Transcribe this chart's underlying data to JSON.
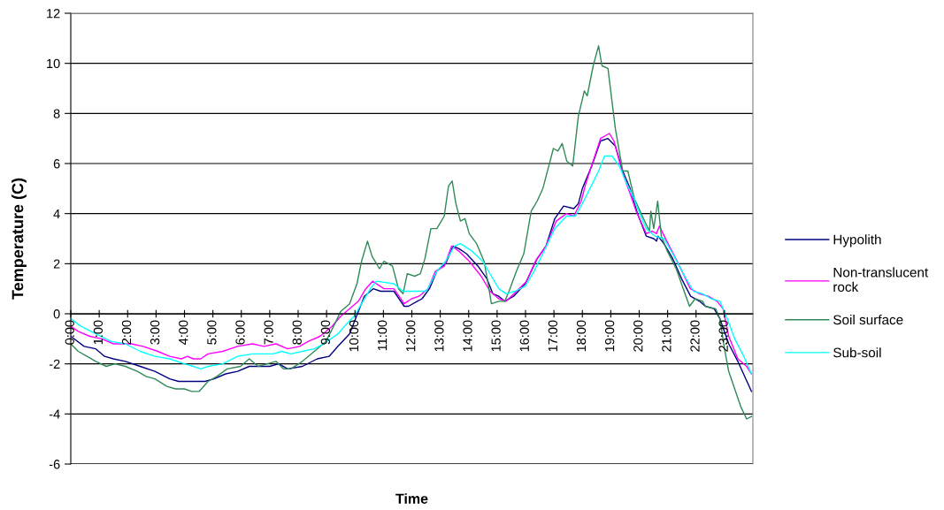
{
  "chart_data": {
    "type": "line",
    "xlabel": "Time",
    "ylabel": "Temperature (C)",
    "series": [
      {
        "name": "Hypolith",
        "color": "#000080",
        "x": [
          0,
          0.47,
          0.88,
          1.19,
          1.5,
          1.92,
          2.44,
          2.96,
          3.48,
          3.79,
          4.2,
          4.72,
          5.04,
          5.45,
          5.87,
          6.28,
          7.0,
          7.32,
          7.63,
          8.15,
          8.67,
          9.09,
          9.4,
          9.81,
          10.12,
          10.33,
          10.64,
          10.9,
          11.37,
          11.73,
          11.88,
          12.19,
          12.36,
          12.62,
          12.88,
          13.19,
          13.45,
          13.66,
          13.92,
          14.33,
          14.64,
          14.85,
          15.06,
          15.27,
          15.58,
          15.99,
          16.41,
          16.72,
          17.03,
          17.34,
          17.7,
          17.86,
          18.0,
          18.33,
          18.64,
          18.9,
          19.16,
          19.42,
          19.68,
          19.94,
          20.25,
          20.51,
          20.61,
          20.66,
          20.87,
          21.18,
          21.49,
          21.81,
          22.12,
          22.33,
          22.64,
          22.84,
          23.15,
          23.47,
          23.95
        ],
        "values": [
          -0.9,
          -1.3,
          -1.4,
          -1.7,
          -1.8,
          -1.9,
          -2.1,
          -2.3,
          -2.6,
          -2.7,
          -2.7,
          -2.7,
          -2.6,
          -2.4,
          -2.3,
          -2.1,
          -2.1,
          -2.0,
          -2.2,
          -2.1,
          -1.8,
          -1.7,
          -1.3,
          -0.8,
          0.1,
          0.7,
          1.0,
          0.9,
          0.9,
          0.3,
          0.3,
          0.5,
          0.6,
          1.0,
          1.7,
          2.0,
          2.7,
          2.6,
          2.4,
          1.9,
          1.4,
          0.8,
          0.7,
          0.5,
          0.7,
          1.2,
          2.2,
          2.7,
          3.8,
          4.3,
          4.2,
          4.4,
          5.0,
          5.9,
          6.9,
          7.0,
          6.7,
          5.7,
          5.0,
          4.0,
          3.1,
          3.0,
          2.9,
          3.1,
          2.8,
          2.2,
          1.4,
          0.7,
          0.5,
          0.3,
          0.2,
          -0.2,
          -1.2,
          -1.9,
          -3.1
        ]
      },
      {
        "name": "Non-translucent rock",
        "color": "#ff00ff",
        "x": [
          0,
          0.26,
          0.67,
          1.09,
          1.5,
          2.13,
          2.54,
          3.06,
          3.48,
          3.89,
          4.1,
          4.31,
          4.57,
          4.83,
          5.35,
          5.87,
          6.39,
          6.8,
          7.22,
          7.63,
          8.05,
          8.36,
          8.77,
          9.19,
          9.5,
          9.81,
          10.12,
          10.38,
          10.62,
          11.02,
          11.37,
          11.73,
          11.99,
          12.25,
          12.57,
          12.83,
          13.14,
          13.4,
          13.66,
          14.02,
          14.44,
          14.75,
          15.06,
          15.32,
          15.68,
          16.04,
          16.35,
          16.72,
          17.08,
          17.44,
          17.7,
          17.96,
          18.12,
          18.38,
          18.64,
          18.95,
          19.11,
          19.42,
          19.68,
          19.89,
          20.25,
          20.46,
          20.61,
          20.71,
          20.97,
          21.38,
          21.8,
          22.12,
          22.43,
          22.74,
          22.95,
          23.15,
          23.47,
          23.78,
          23.95
        ],
        "values": [
          -0.5,
          -0.7,
          -0.9,
          -1.0,
          -1.2,
          -1.2,
          -1.3,
          -1.5,
          -1.7,
          -1.8,
          -1.7,
          -1.8,
          -1.8,
          -1.6,
          -1.5,
          -1.3,
          -1.2,
          -1.3,
          -1.2,
          -1.4,
          -1.3,
          -1.1,
          -0.9,
          -0.5,
          -0.1,
          0.2,
          0.5,
          1.0,
          1.3,
          1.0,
          1.0,
          0.4,
          0.6,
          0.7,
          1.0,
          1.7,
          1.9,
          2.7,
          2.5,
          2.1,
          1.5,
          0.9,
          0.6,
          0.5,
          0.9,
          1.3,
          2.1,
          2.7,
          3.7,
          4.0,
          3.9,
          4.5,
          5.2,
          6.1,
          7.0,
          7.2,
          6.9,
          5.6,
          4.8,
          4.1,
          3.2,
          3.3,
          3.2,
          3.5,
          2.9,
          2.0,
          1.0,
          0.8,
          0.7,
          0.5,
          0.2,
          -0.9,
          -1.8,
          -2.1,
          -2.4
        ]
      },
      {
        "name": "Soil surface",
        "color": "#2e8b57",
        "x": [
          0,
          0.26,
          0.57,
          0.88,
          1.25,
          1.56,
          1.92,
          2.34,
          2.65,
          2.96,
          3.38,
          3.69,
          4.0,
          4.26,
          4.52,
          4.83,
          5.14,
          5.5,
          5.97,
          6.28,
          6.59,
          6.91,
          7.22,
          7.48,
          7.74,
          8.15,
          8.57,
          8.98,
          9.29,
          9.5,
          9.81,
          10.07,
          10.23,
          10.44,
          10.6,
          10.86,
          11.02,
          11.32,
          11.53,
          11.69,
          11.84,
          12.1,
          12.3,
          12.46,
          12.67,
          12.88,
          13.14,
          13.29,
          13.42,
          13.55,
          13.71,
          13.87,
          14.02,
          14.28,
          14.54,
          14.7,
          14.8,
          15.06,
          15.27,
          15.42,
          15.68,
          15.94,
          16.2,
          16.41,
          16.61,
          16.98,
          17.14,
          17.29,
          17.45,
          17.66,
          17.86,
          18.07,
          18.17,
          18.38,
          18.57,
          18.69,
          18.9,
          19.16,
          19.42,
          19.6,
          19.83,
          20.15,
          20.36,
          20.41,
          20.51,
          20.65,
          20.78,
          20.99,
          21.3,
          21.61,
          21.77,
          21.97,
          22.23,
          22.33,
          22.69,
          22.84,
          23.0,
          23.15,
          23.36,
          23.57,
          23.78,
          23.95
        ],
        "values": [
          -1.2,
          -1.5,
          -1.7,
          -1.9,
          -2.1,
          -2.0,
          -2.1,
          -2.3,
          -2.5,
          -2.6,
          -2.9,
          -3.0,
          -3.0,
          -3.1,
          -3.1,
          -2.7,
          -2.5,
          -2.2,
          -2.1,
          -1.8,
          -2.1,
          -2.0,
          -1.9,
          -2.2,
          -2.2,
          -1.9,
          -1.5,
          -1.1,
          -0.4,
          0.1,
          0.4,
          1.2,
          2.1,
          2.9,
          2.3,
          1.8,
          2.1,
          1.9,
          1.0,
          0.8,
          1.6,
          1.5,
          1.6,
          2.2,
          3.4,
          3.4,
          3.9,
          5.1,
          5.3,
          4.4,
          3.7,
          3.8,
          3.2,
          2.8,
          2.1,
          1.1,
          0.4,
          0.5,
          0.5,
          0.9,
          1.7,
          2.4,
          4.1,
          4.5,
          5.0,
          6.6,
          6.5,
          6.8,
          6.1,
          5.9,
          7.9,
          8.9,
          8.7,
          9.9,
          10.7,
          9.9,
          9.8,
          7.4,
          5.7,
          5.7,
          4.6,
          3.8,
          3.3,
          4.1,
          3.4,
          4.5,
          3.1,
          2.5,
          1.8,
          0.8,
          0.3,
          0.6,
          0.5,
          0.3,
          0.2,
          -0.2,
          -1.4,
          -2.3,
          -3.0,
          -3.7,
          -4.2,
          -4.1
        ]
      },
      {
        "name": "Sub-soil",
        "color": "#00ffff",
        "x": [
          0,
          0.36,
          0.88,
          1.4,
          1.92,
          2.44,
          2.96,
          3.48,
          4.0,
          4.31,
          4.57,
          4.83,
          5.35,
          5.87,
          6.39,
          7.12,
          7.42,
          7.74,
          8.15,
          8.57,
          8.9,
          9.4,
          9.71,
          9.97,
          10.23,
          10.54,
          10.75,
          11.37,
          11.69,
          11.88,
          12.15,
          12.51,
          12.88,
          13.19,
          13.5,
          13.71,
          14.12,
          14.49,
          14.8,
          15.06,
          15.32,
          15.63,
          15.99,
          16.3,
          16.61,
          17.03,
          17.44,
          17.75,
          18.0,
          18.31,
          18.57,
          18.78,
          19.04,
          19.3,
          19.56,
          19.82,
          19.94,
          20.25,
          20.56,
          20.87,
          21.18,
          21.6,
          21.91,
          22.23,
          22.53,
          22.84,
          23.1,
          23.36,
          23.68,
          23.95
        ],
        "values": [
          -0.2,
          -0.5,
          -0.8,
          -1.1,
          -1.2,
          -1.5,
          -1.7,
          -1.8,
          -2.0,
          -2.1,
          -2.2,
          -2.1,
          -2.0,
          -1.7,
          -1.6,
          -1.6,
          -1.5,
          -1.6,
          -1.5,
          -1.4,
          -1.2,
          -0.8,
          -0.4,
          -0.1,
          0.4,
          1.0,
          1.3,
          1.2,
          0.9,
          0.9,
          0.9,
          0.9,
          1.7,
          2.1,
          2.7,
          2.8,
          2.5,
          2.1,
          1.5,
          1.0,
          0.8,
          0.9,
          1.1,
          1.7,
          2.4,
          3.4,
          3.9,
          3.9,
          4.4,
          5.1,
          5.7,
          6.3,
          6.3,
          5.9,
          5.2,
          4.6,
          4.2,
          3.4,
          3.1,
          3.0,
          2.4,
          1.5,
          0.9,
          0.8,
          0.6,
          0.5,
          -0.2,
          -1.0,
          -1.7,
          -2.4
        ]
      }
    ],
    "xlim": [
      0,
      24
    ],
    "xticks": [
      {
        "value": 0,
        "label": "0:00"
      },
      {
        "value": 1,
        "label": "1:00"
      },
      {
        "value": 2,
        "label": "2:00"
      },
      {
        "value": 3,
        "label": "3:00"
      },
      {
        "value": 4,
        "label": "4:00"
      },
      {
        "value": 5,
        "label": "5:00"
      },
      {
        "value": 6,
        "label": "6:00"
      },
      {
        "value": 7,
        "label": "7:00"
      },
      {
        "value": 8,
        "label": "8:00"
      },
      {
        "value": 9,
        "label": "9:00"
      },
      {
        "value": 10,
        "label": "10:00"
      },
      {
        "value": 11,
        "label": "11:00"
      },
      {
        "value": 12,
        "label": "12:00"
      },
      {
        "value": 13,
        "label": "13:00"
      },
      {
        "value": 14,
        "label": "14:00"
      },
      {
        "value": 15,
        "label": "15:00"
      },
      {
        "value": 16,
        "label": "16:00"
      },
      {
        "value": 17,
        "label": "17:00"
      },
      {
        "value": 18,
        "label": "18:00"
      },
      {
        "value": 19,
        "label": "19:00"
      },
      {
        "value": 20,
        "label": "20:00"
      },
      {
        "value": 21,
        "label": "21:00"
      },
      {
        "value": 22,
        "label": "22:00"
      },
      {
        "value": 23,
        "label": "23:00"
      }
    ],
    "ylim": [
      -6,
      12
    ],
    "yticks": [
      -6,
      -4,
      -2,
      0,
      2,
      4,
      6,
      8,
      10,
      12
    ],
    "grid": "y",
    "legend": "right",
    "line_style": "solid"
  }
}
